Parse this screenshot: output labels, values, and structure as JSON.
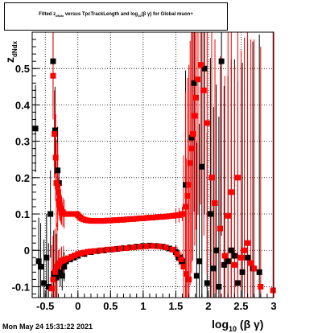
{
  "title": {
    "prefix": "Fitted  z",
    "sub1": "dNdx",
    "middle": "  versus TpcTrackLength and log",
    "sub2": "10",
    "suffix": "(β γ) for Global muon+"
  },
  "footer": "Mon May 24 15:31:22 2021",
  "colors": {
    "series1": "#000000",
    "series2": "#ff0000",
    "grid": "#000000"
  },
  "chart_data": {
    "type": "scatter",
    "title": "Fitted z_dNdx versus TpcTrackLength and log10(β γ) for Global muon+",
    "xlabel": "log10 (β γ)",
    "ylabel": "z_dNdx",
    "xlim": [
      -0.7,
      3.0
    ],
    "ylim": [
      -0.13,
      0.6
    ],
    "grid": true,
    "x_ticks": [
      "-0.5",
      "0",
      "0.5",
      "1",
      "1.5",
      "2",
      "2.5",
      "3"
    ],
    "x_tick_values": [
      -0.5,
      0,
      0.5,
      1,
      1.5,
      2,
      2.5,
      3
    ],
    "y_ticks": [
      "-0.1",
      "0",
      "0.1",
      "0.2",
      "0.3",
      "0.4",
      "0.5"
    ],
    "y_tick_values": [
      -0.1,
      0,
      0.1,
      0.2,
      0.3,
      0.4,
      0.5
    ],
    "series": [
      {
        "color": "#000000",
        "points": [
          [
            -0.65,
            0.335
          ],
          [
            -0.6,
            -0.03
          ],
          [
            -0.57,
            -0.045
          ],
          [
            -0.52,
            -0.09
          ],
          [
            -0.48,
            -0.02
          ],
          [
            -0.45,
            -0.1
          ],
          [
            -0.42,
            0.1
          ],
          [
            -0.38,
            0.52
          ],
          [
            -0.37,
            -0.065
          ],
          [
            -0.35,
            0.33
          ],
          [
            -0.33,
            -0.075
          ],
          [
            -0.31,
            0.22
          ],
          [
            -0.29,
            0.185
          ],
          [
            -0.27,
            -0.06
          ],
          [
            -0.24,
            -0.07
          ],
          [
            -0.21,
            -0.045
          ],
          [
            -0.18,
            -0.03
          ],
          [
            -0.12,
            -0.025
          ],
          [
            -0.06,
            -0.02
          ],
          [
            0.0,
            -0.015
          ],
          [
            0.1,
            -0.01
          ],
          [
            0.2,
            -0.005
          ],
          [
            0.3,
            -0.002
          ],
          [
            0.4,
            0.0
          ],
          [
            0.5,
            0.002
          ],
          [
            0.6,
            0.004
          ],
          [
            0.7,
            0.006
          ],
          [
            0.8,
            0.008
          ],
          [
            0.9,
            0.01
          ],
          [
            1.0,
            0.012
          ],
          [
            1.1,
            0.013
          ],
          [
            1.2,
            0.012
          ],
          [
            1.3,
            0.01
          ],
          [
            1.4,
            0.005
          ],
          [
            1.5,
            -0.005
          ],
          [
            1.55,
            -0.02
          ],
          [
            1.6,
            -0.03
          ],
          [
            1.65,
            0.18
          ],
          [
            1.7,
            -0.08
          ],
          [
            1.74,
            0.31
          ],
          [
            1.78,
            0.46
          ],
          [
            1.82,
            -0.07
          ],
          [
            1.86,
            -0.03
          ],
          [
            1.9,
            0.23
          ],
          [
            1.94,
            0.5
          ],
          [
            1.98,
            -0.09
          ],
          [
            2.03,
            0.1
          ],
          [
            2.08,
            -0.05
          ],
          [
            2.12,
            0.0
          ],
          [
            2.16,
            -0.1
          ],
          [
            2.2,
            0.52
          ],
          [
            2.24,
            -0.04
          ],
          [
            2.3,
            -0.03
          ],
          [
            2.35,
            0.0
          ],
          [
            2.4,
            -0.015
          ],
          [
            2.45,
            -0.09
          ],
          [
            2.52,
            -0.06
          ],
          [
            2.6,
            -0.02
          ],
          [
            2.68,
            -0.05
          ],
          [
            2.78,
            -0.06
          ]
        ]
      },
      {
        "color": "#ff0000",
        "points": [
          [
            -0.38,
            0.48
          ],
          [
            -0.36,
            0.32
          ],
          [
            -0.34,
            0.255
          ],
          [
            -0.33,
            0.185
          ],
          [
            -0.31,
            0.175
          ],
          [
            -0.3,
            0.16
          ],
          [
            -0.29,
            0.135
          ],
          [
            -0.28,
            0.125
          ],
          [
            -0.27,
            0.12
          ],
          [
            -0.26,
            0.115
          ],
          [
            -0.25,
            0.11
          ],
          [
            -0.23,
            0.105
          ],
          [
            -0.21,
            0.1
          ],
          [
            -0.19,
            0.1
          ],
          [
            -0.17,
            0.1
          ],
          [
            -0.15,
            0.1
          ],
          [
            -0.12,
            0.1
          ],
          [
            -0.09,
            0.1
          ],
          [
            -0.06,
            0.1
          ],
          [
            -0.04,
            0.1
          ],
          [
            -0.02,
            0.1
          ],
          [
            0.0,
            0.097
          ],
          [
            0.02,
            0.093
          ],
          [
            0.04,
            0.09
          ],
          [
            0.06,
            0.087
          ],
          [
            0.09,
            0.085
          ],
          [
            0.12,
            0.083
          ],
          [
            0.16,
            0.082
          ],
          [
            0.2,
            0.081
          ],
          [
            0.25,
            0.081
          ],
          [
            0.3,
            0.081
          ],
          [
            0.35,
            0.081
          ],
          [
            0.4,
            0.081
          ],
          [
            0.45,
            0.082
          ],
          [
            0.5,
            0.082
          ],
          [
            0.55,
            0.083
          ],
          [
            0.6,
            0.083
          ],
          [
            0.65,
            0.084
          ],
          [
            0.7,
            0.084
          ],
          [
            0.75,
            0.085
          ],
          [
            0.8,
            0.086
          ],
          [
            0.85,
            0.086
          ],
          [
            0.9,
            0.087
          ],
          [
            0.95,
            0.088
          ],
          [
            1.0,
            0.088
          ],
          [
            1.05,
            0.089
          ],
          [
            1.1,
            0.09
          ],
          [
            1.15,
            0.09
          ],
          [
            1.2,
            0.091
          ],
          [
            1.25,
            0.092
          ],
          [
            1.3,
            0.092
          ],
          [
            1.35,
            0.093
          ],
          [
            1.4,
            0.094
          ],
          [
            1.45,
            0.095
          ],
          [
            1.5,
            0.096
          ],
          [
            1.55,
            0.097
          ],
          [
            1.6,
            0.1
          ],
          [
            1.65,
            0.12
          ],
          [
            1.68,
            0.15
          ],
          [
            1.7,
            0.18
          ],
          [
            1.72,
            0.24
          ],
          [
            1.74,
            0.28
          ],
          [
            1.76,
            0.32
          ],
          [
            1.79,
            0.37
          ],
          [
            1.81,
            0.42
          ],
          [
            1.84,
            0.47
          ],
          [
            1.88,
            0.51
          ],
          [
            1.93,
            0.44
          ],
          [
            1.98,
            0.35
          ],
          [
            2.05,
            0.2
          ],
          [
            2.1,
            0.13
          ],
          [
            2.18,
            0.06
          ],
          [
            2.25,
            -0.015
          ],
          [
            2.3,
            0.095
          ],
          [
            2.35,
            0.16
          ],
          [
            2.4,
            -0.04
          ],
          [
            2.45,
            0.2
          ],
          [
            2.5,
            -0.02
          ],
          [
            2.55,
            0.0
          ],
          [
            2.6,
            0.02
          ],
          [
            2.65,
            -0.035
          ],
          [
            2.7,
            -0.05
          ],
          [
            2.8,
            -0.1
          ],
          [
            2.99,
            -0.11
          ],
          [
            -0.4,
            -0.105
          ],
          [
            -0.38,
            -0.08
          ],
          [
            -0.35,
            -0.06
          ],
          [
            -0.32,
            -0.045
          ],
          [
            -0.3,
            -0.04
          ],
          [
            -0.28,
            -0.035
          ],
          [
            -0.25,
            -0.03
          ],
          [
            -0.22,
            -0.028
          ],
          [
            -0.2,
            -0.025
          ],
          [
            -0.15,
            -0.022
          ],
          [
            -0.1,
            -0.018
          ],
          [
            -0.05,
            -0.014
          ],
          [
            0.0,
            -0.01
          ],
          [
            0.05,
            -0.008
          ],
          [
            0.1,
            -0.006
          ],
          [
            0.15,
            -0.004
          ],
          [
            0.2,
            -0.003
          ],
          [
            0.25,
            -0.002
          ],
          [
            0.35,
            0.0
          ],
          [
            0.45,
            0.002
          ],
          [
            0.55,
            0.003
          ],
          [
            0.65,
            0.005
          ],
          [
            0.75,
            0.006
          ],
          [
            0.85,
            0.008
          ],
          [
            0.95,
            0.01
          ],
          [
            1.05,
            0.011
          ],
          [
            1.15,
            0.012
          ],
          [
            1.25,
            0.011
          ],
          [
            1.35,
            0.008
          ],
          [
            1.45,
            0.002
          ],
          [
            1.52,
            -0.01
          ],
          [
            1.58,
            -0.025
          ],
          [
            1.62,
            -0.045
          ],
          [
            1.66,
            -0.065
          ],
          [
            1.7,
            -0.08
          ]
        ]
      }
    ]
  }
}
